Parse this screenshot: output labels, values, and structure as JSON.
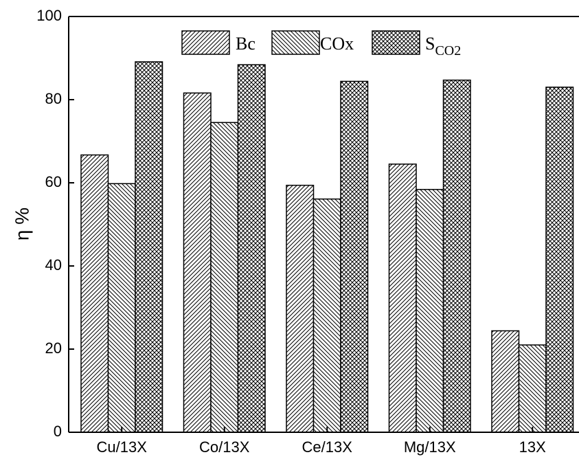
{
  "chart_data": {
    "type": "bar",
    "categories": [
      "Cu/13X",
      "Co/13X",
      "Ce/13X",
      "Mg/13X",
      "13X"
    ],
    "series": [
      {
        "name": "Bc",
        "values": [
          66.7,
          81.6,
          59.4,
          64.5,
          24.4
        ]
      },
      {
        "name": "COx",
        "values": [
          59.8,
          74.5,
          56.1,
          58.4,
          21.0
        ]
      },
      {
        "name": "SCO2",
        "name_main": "S",
        "name_sub": "CO2",
        "values": [
          89.1,
          88.4,
          84.4,
          84.7,
          83.0
        ]
      }
    ],
    "ylabel": "η %",
    "ylim": [
      0,
      100
    ],
    "yticks": [
      0,
      20,
      40,
      60,
      80,
      100
    ],
    "legend_position": "top-center",
    "grid": false
  }
}
